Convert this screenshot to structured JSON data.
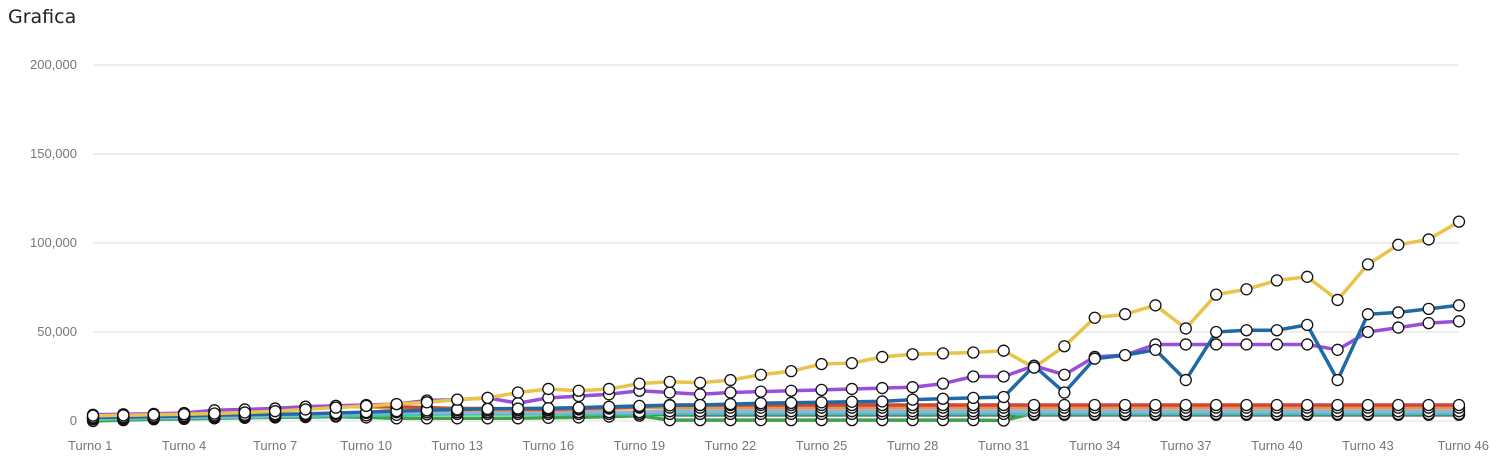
{
  "card": {
    "title": "Grafica"
  },
  "chart_data": {
    "type": "line",
    "title": "Grafica",
    "xlabel": "",
    "ylabel": "",
    "ylim": [
      0,
      200000
    ],
    "yticks": [
      0,
      50000,
      100000,
      150000,
      200000
    ],
    "y_tick_labels": [
      "0",
      "50,000",
      "100,000",
      "150,000",
      "200,000"
    ],
    "x": [
      "Turno 1",
      "Turno 2",
      "Turno 3",
      "Turno 4",
      "Turno 5",
      "Turno 6",
      "Turno 7",
      "Turno 8",
      "Turno 9",
      "Turno 10",
      "Turno 11",
      "Turno 12",
      "Turno 13",
      "Turno 14",
      "Turno 15",
      "Turno 16",
      "Turno 17",
      "Turno 18",
      "Turno 19",
      "Turno 20",
      "Turno 21",
      "Turno 22",
      "Turno 23",
      "Turno 24",
      "Turno 25",
      "Turno 26",
      "Turno 27",
      "Turno 28",
      "Turno 29",
      "Turno 30",
      "Turno 31",
      "Turno 32",
      "Turno 33",
      "Turno 34",
      "Turno 35",
      "Turno 36",
      "Turno 37",
      "Turno 38",
      "Turno 39",
      "Turno 40",
      "Turno 41",
      "Turno 42",
      "Turno 43",
      "Turno 44",
      "Turno 45",
      "Turno 46"
    ],
    "x_tick_labels": [
      "Turno 1",
      "Turno 4",
      "Turno 7",
      "Turno 10",
      "Turno 13",
      "Turno 16",
      "Turno 19",
      "Turno 22",
      "Turno 25",
      "Turno 28",
      "Turno 31",
      "Turno 34",
      "Turno 37",
      "Turno 40",
      "Turno 43",
      "Turno 46"
    ],
    "grid": true,
    "legend": "none",
    "series": [
      {
        "color": "#e8c44a",
        "values": [
          3000,
          3200,
          3500,
          3800,
          4200,
          4800,
          5500,
          6500,
          7500,
          8500,
          9500,
          10500,
          12000,
          13000,
          16000,
          18000,
          17000,
          18000,
          21000,
          22000,
          21500,
          23000,
          26000,
          28000,
          32000,
          32500,
          36000,
          37500,
          38000,
          38500,
          39500,
          30000,
          42000,
          58000,
          60000,
          65000,
          52000,
          71000,
          74000,
          79000,
          81000,
          68000,
          88000,
          99000,
          102000,
          112000
        ]
      },
      {
        "color": "#1f6aa5",
        "values": [
          2000,
          2200,
          2500,
          2800,
          3200,
          3500,
          3800,
          4000,
          4500,
          5000,
          5500,
          6000,
          6500,
          6800,
          7000,
          7200,
          7500,
          8000,
          8500,
          8800,
          9000,
          9500,
          10000,
          10200,
          10500,
          10800,
          11000,
          12000,
          12500,
          13000,
          13500,
          31000,
          16000,
          35000,
          37000,
          40000,
          23000,
          50000,
          51000,
          51000,
          54000,
          23000,
          60000,
          61000,
          63000,
          65000
        ]
      },
      {
        "color": "#9a4fdc",
        "values": [
          3500,
          3800,
          4000,
          4500,
          6000,
          6500,
          7000,
          8000,
          8500,
          9000,
          9500,
          11500,
          12000,
          13000,
          10000,
          13000,
          14000,
          15000,
          17000,
          16000,
          15000,
          16000,
          16500,
          17000,
          17500,
          18000,
          18500,
          19000,
          21000,
          25000,
          25000,
          31000,
          26000,
          36000,
          37000,
          43000,
          43000,
          43000,
          43000,
          43000,
          43000,
          40000,
          50000,
          52500,
          55000,
          56000
        ]
      },
      {
        "color": "#d0473a",
        "values": [
          2500,
          3000,
          3500,
          4000,
          5000,
          6000,
          7000,
          8000,
          8500,
          8800,
          8000,
          7500,
          7000,
          7000,
          6800,
          6500,
          7000,
          7500,
          8000,
          9000,
          9000,
          9000,
          9000,
          9000,
          9000,
          9000,
          9000,
          9000,
          9000,
          9000,
          9000,
          9000,
          9000,
          9000,
          9000,
          9000,
          9000,
          9000,
          9000,
          9000,
          9000,
          9000,
          9000,
          9000,
          9000,
          9000
        ]
      },
      {
        "color": "#e8954a",
        "values": [
          2000,
          2500,
          3000,
          3500,
          4500,
          5500,
          6500,
          7500,
          8000,
          8000,
          7000,
          6500,
          6000,
          6000,
          6000,
          6000,
          6500,
          7000,
          7500,
          7500,
          7500,
          7500,
          7500,
          7500,
          7500,
          7500,
          7500,
          7500,
          7500,
          7500,
          7500,
          7500,
          7500,
          7500,
          7500,
          7500,
          7500,
          7500,
          7500,
          7500,
          7500,
          7500,
          7500,
          7500,
          7500,
          7500
        ]
      },
      {
        "color": "#8fb4d9",
        "values": [
          1500,
          1800,
          2000,
          2200,
          2500,
          2800,
          3000,
          3500,
          4000,
          4500,
          5000,
          5000,
          5000,
          5000,
          5000,
          5000,
          5000,
          5000,
          5000,
          5500,
          5500,
          5500,
          5500,
          5500,
          5500,
          5500,
          5500,
          5500,
          5500,
          5500,
          5500,
          5500,
          5500,
          5500,
          5500,
          5500,
          5500,
          5500,
          5500,
          5500,
          5500,
          5500,
          5500,
          5500,
          5500,
          5500
        ]
      },
      {
        "color": "#4ec0b6",
        "values": [
          1000,
          1200,
          1500,
          1800,
          2000,
          2200,
          2500,
          2800,
          3000,
          3200,
          3500,
          3800,
          4000,
          4000,
          4000,
          4000,
          4000,
          4000,
          4000,
          4000,
          4000,
          4000,
          4000,
          4000,
          4000,
          4000,
          4000,
          4000,
          4000,
          4000,
          4000,
          4000,
          4000,
          4000,
          4000,
          4000,
          4000,
          4000,
          4000,
          4000,
          4000,
          4000,
          4000,
          4000,
          4000,
          4000
        ]
      },
      {
        "color": "#3fa34d",
        "values": [
          0,
          500,
          1000,
          1200,
          1500,
          1800,
          2000,
          2200,
          2500,
          2000,
          1500,
          1500,
          1500,
          1500,
          1500,
          1800,
          2000,
          2500,
          3000,
          500,
          500,
          500,
          500,
          500,
          500,
          500,
          500,
          500,
          500,
          500,
          300,
          4500,
          4500,
          4500,
          4500,
          4500,
          4500,
          4500,
          4500,
          4500,
          4500,
          4500,
          4500,
          4500,
          4500,
          4500
        ]
      },
      {
        "color": "#333333",
        "values": [
          1500,
          1800,
          2000,
          2200,
          2500,
          2800,
          3000,
          3200,
          3500,
          3800,
          4000,
          4000,
          4000,
          4000,
          4000,
          4000,
          4000,
          4000,
          4000,
          3500,
          3500,
          3500,
          3500,
          3500,
          3500,
          3500,
          3500,
          3500,
          3500,
          3500,
          3500,
          3500,
          3500,
          3500,
          3500,
          3500,
          3500,
          3500,
          3500,
          3500,
          3500,
          3500,
          3500,
          3500,
          3500,
          3500
        ]
      }
    ]
  }
}
